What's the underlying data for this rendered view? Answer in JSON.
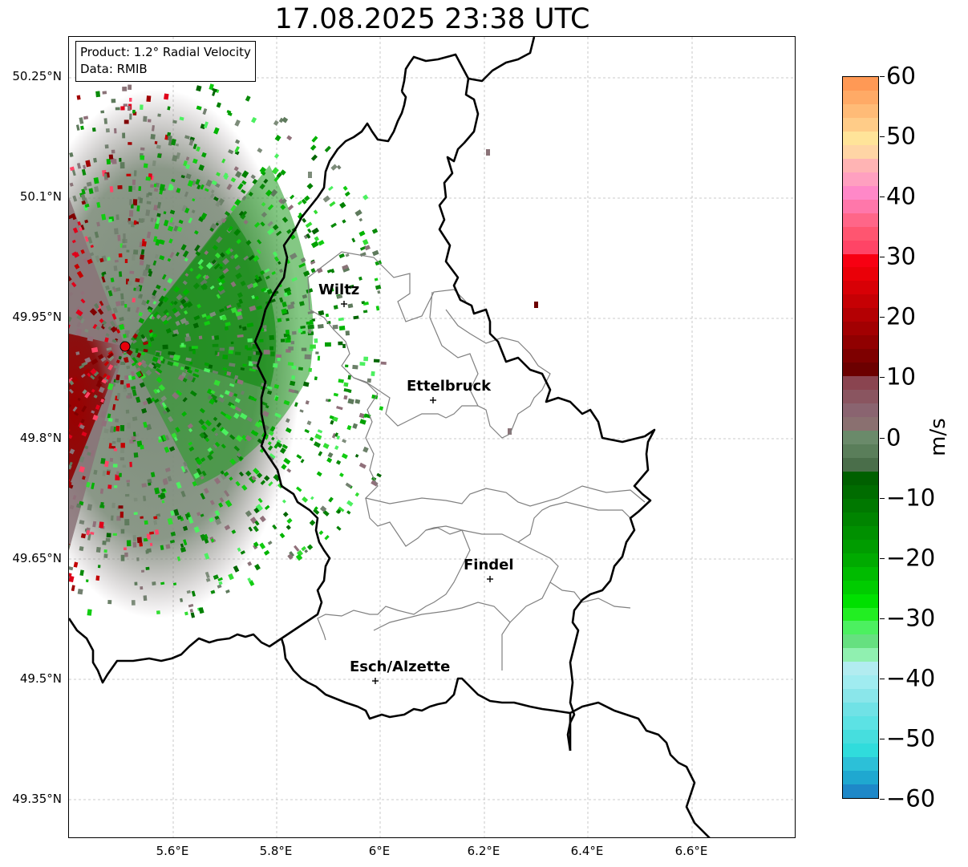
{
  "title": "17.08.2025 23:38 UTC",
  "infobox": {
    "product": "Product: 1.2° Radial Velocity",
    "data_source": "Data: RMIB"
  },
  "map": {
    "lat_labels": [
      "50.25°N",
      "50.1°N",
      "49.95°N",
      "49.8°N",
      "49.65°N",
      "49.5°N",
      "49.35°N"
    ],
    "lon_labels": [
      "5.6°E",
      "5.8°E",
      "6°E",
      "6.2°E",
      "6.4°E",
      "6.6°E"
    ],
    "cities": [
      {
        "name": "Wiltz"
      },
      {
        "name": "Ettelbruck"
      },
      {
        "name": "Findel"
      },
      {
        "name": "Esch/Alzette"
      }
    ],
    "radar_site_color": "#e8000b"
  },
  "colorbar": {
    "unit": "m/s",
    "tick_labels": [
      "60",
      "50",
      "40",
      "30",
      "20",
      "10",
      "0",
      "−10",
      "−20",
      "−30",
      "−40",
      "−50",
      "−60"
    ],
    "range": [
      -60,
      60
    ],
    "colors_top_to_bottom": [
      "#ff9955",
      "#ffaa66",
      "#ffbb77",
      "#ffcc88",
      "#ffe499",
      "#ffd5a5",
      "#ffb4b4",
      "#ffa0c0",
      "#ff88c8",
      "#ff77aa",
      "#ff6688",
      "#ff5570",
      "#ff4466",
      "#f70012",
      "#ea0008",
      "#d80006",
      "#c60004",
      "#b40003",
      "#a20002",
      "#900001",
      "#7e0000",
      "#6c0000",
      "#8a4450",
      "#8a5560",
      "#8a6470",
      "#8a7070",
      "#6a8a6a",
      "#5a7e5a",
      "#4a6e4a",
      "#006000",
      "#006c00",
      "#007800",
      "#008400",
      "#009000",
      "#009c00",
      "#00aa00",
      "#00bb00",
      "#00cc00",
      "#00e000",
      "#22ee22",
      "#4cf060",
      "#66e080",
      "#90f0b0",
      "#b2ecf0",
      "#a0ecf0",
      "#8ae6ea",
      "#70e2e6",
      "#5ce2e4",
      "#46dede",
      "#30dcdc",
      "#2cc0d8",
      "#1fa8d0",
      "#1e88c8"
    ]
  }
}
